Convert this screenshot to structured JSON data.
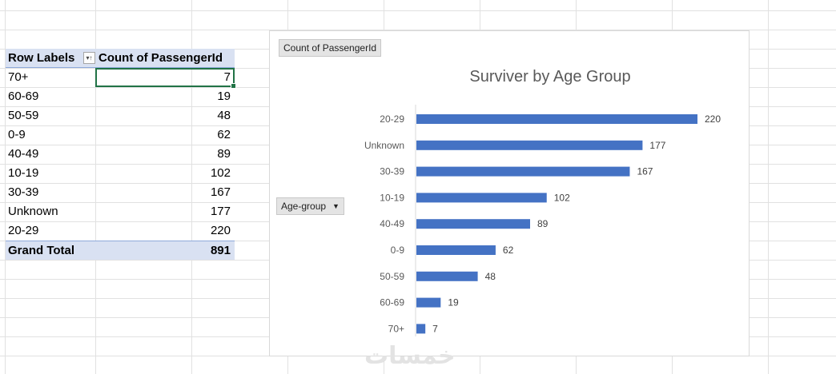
{
  "pivot": {
    "header": {
      "row_labels": "Row Labels",
      "filter_icon": "filter-sort-icon",
      "value_col": "Count of PassengerId"
    },
    "rows": [
      {
        "label": "70+",
        "value": "7"
      },
      {
        "label": "60-69",
        "value": "19"
      },
      {
        "label": "50-59",
        "value": "48"
      },
      {
        "label": "0-9",
        "value": "62"
      },
      {
        "label": "40-49",
        "value": "89"
      },
      {
        "label": "10-19",
        "value": "102"
      },
      {
        "label": "30-39",
        "value": "167"
      },
      {
        "label": "Unknown",
        "value": "177"
      },
      {
        "label": "20-29",
        "value": "220"
      }
    ],
    "total": {
      "label": "Grand Total",
      "value": "891"
    }
  },
  "chart": {
    "value_field_button": "Count of PassengerId",
    "axis_field_button": "Age-group",
    "axis_field_arrow": "dropdown-arrow-icon",
    "bar_color": "#4472c4"
  },
  "chart_data": {
    "type": "bar",
    "orientation": "horizontal",
    "title": "Surviver by Age Group",
    "categories": [
      "20-29",
      "Unknown",
      "30-39",
      "10-19",
      "40-49",
      "0-9",
      "50-59",
      "60-69",
      "70+"
    ],
    "values": [
      220,
      177,
      167,
      102,
      89,
      62,
      48,
      19,
      7
    ],
    "xlim": [
      0,
      220
    ],
    "grid": false,
    "legend": "none",
    "data_labels": true
  },
  "watermark": "خمسات"
}
